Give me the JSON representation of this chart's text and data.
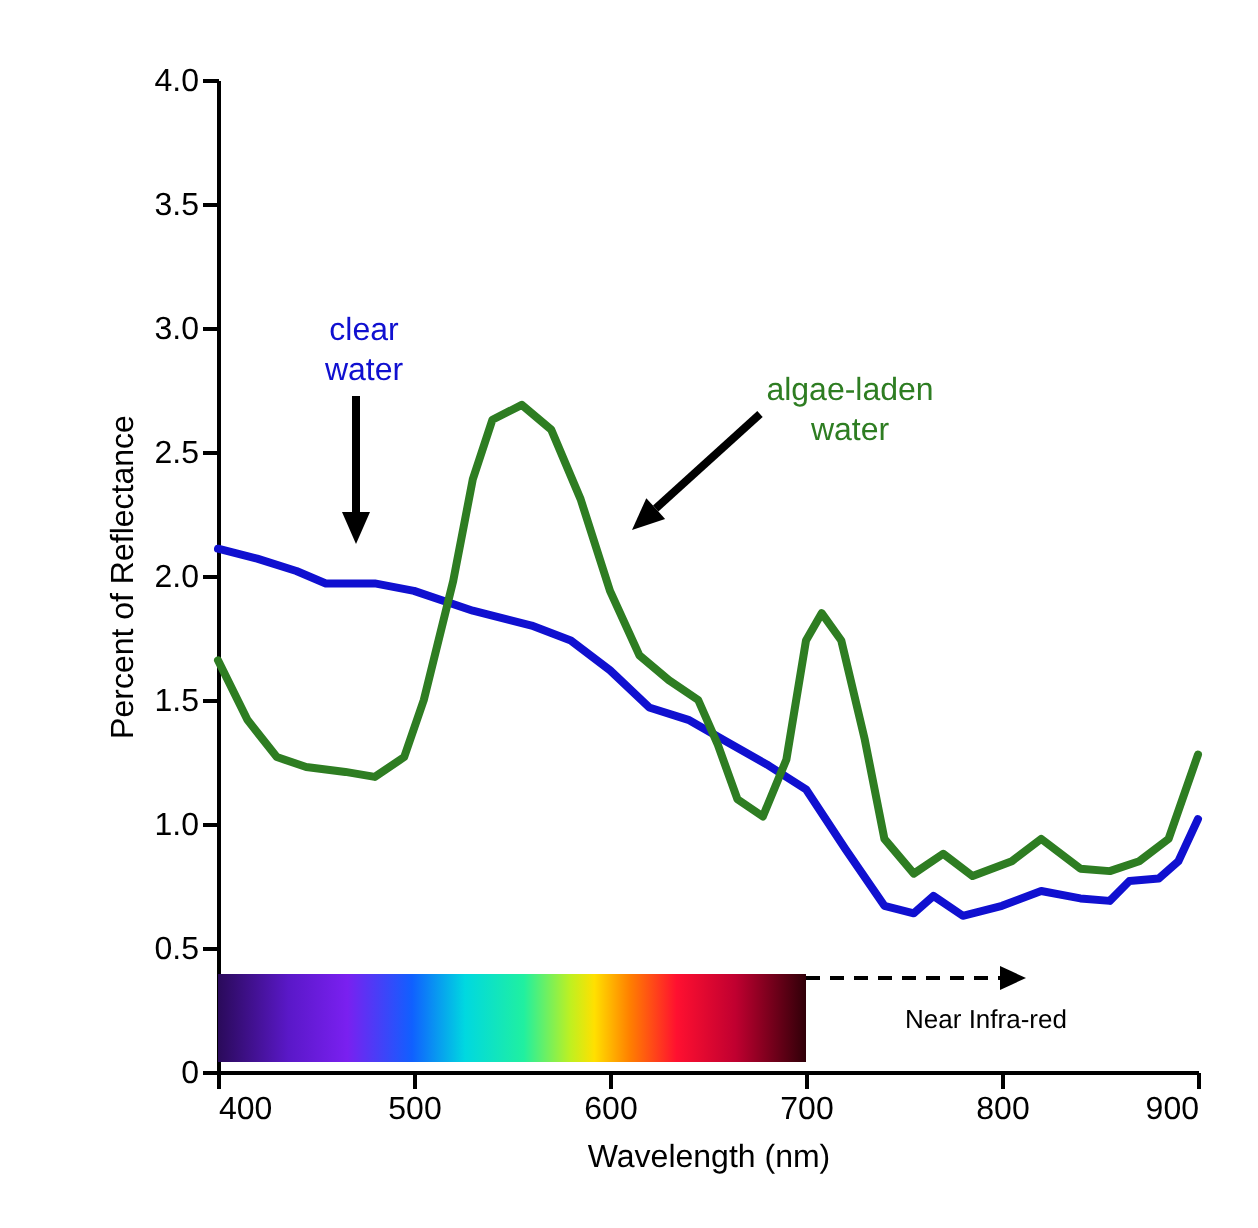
{
  "chart_data": {
    "type": "line",
    "xlabel": "Wavelength (nm)",
    "ylabel": "Percent of Reflectance",
    "xlim": [
      400,
      900
    ],
    "xticks": [
      400,
      500,
      600,
      700,
      800,
      900
    ],
    "ylim": [
      0,
      4
    ],
    "yticks": [
      {
        "value": 0,
        "label": "0"
      },
      0.5,
      {
        "value": 1,
        "label": "1.0"
      },
      1.5,
      {
        "value": 2,
        "label": "2.0"
      },
      2.5,
      {
        "value": 3,
        "label": "3.0"
      },
      3.5,
      {
        "value": 4,
        "label": "4.0"
      }
    ],
    "annotations": [
      "Near Infra-red"
    ],
    "series": [
      {
        "name": "clear water",
        "color": "#1010d0",
        "x": [
          400,
          420,
          440,
          455,
          480,
          500,
          530,
          560,
          580,
          600,
          620,
          640,
          660,
          680,
          700,
          720,
          740,
          755,
          765,
          780,
          800,
          820,
          840,
          855,
          865,
          880,
          890,
          900
        ],
        "values": [
          2.11,
          2.07,
          2.02,
          1.97,
          1.97,
          1.94,
          1.86,
          1.8,
          1.74,
          1.62,
          1.47,
          1.42,
          1.33,
          1.24,
          1.14,
          0.9,
          0.67,
          0.64,
          0.71,
          0.63,
          0.67,
          0.73,
          0.7,
          0.69,
          0.77,
          0.78,
          0.85,
          1.02
        ]
      },
      {
        "name": "algae-laden water",
        "color": "#2e7d22",
        "x": [
          400,
          415,
          430,
          445,
          465,
          480,
          495,
          505,
          520,
          530,
          540,
          555,
          570,
          585,
          600,
          615,
          630,
          645,
          655,
          665,
          678,
          690,
          700,
          708,
          718,
          730,
          740,
          755,
          770,
          785,
          805,
          820,
          840,
          855,
          870,
          885,
          900
        ],
        "values": [
          1.66,
          1.42,
          1.27,
          1.23,
          1.21,
          1.19,
          1.27,
          1.5,
          1.98,
          2.39,
          2.63,
          2.69,
          2.59,
          2.31,
          1.94,
          1.68,
          1.58,
          1.5,
          1.32,
          1.1,
          1.03,
          1.26,
          1.74,
          1.85,
          1.74,
          1.34,
          0.94,
          0.8,
          0.88,
          0.79,
          0.85,
          0.94,
          0.82,
          0.81,
          0.85,
          0.94,
          1.28
        ]
      }
    ]
  }
}
